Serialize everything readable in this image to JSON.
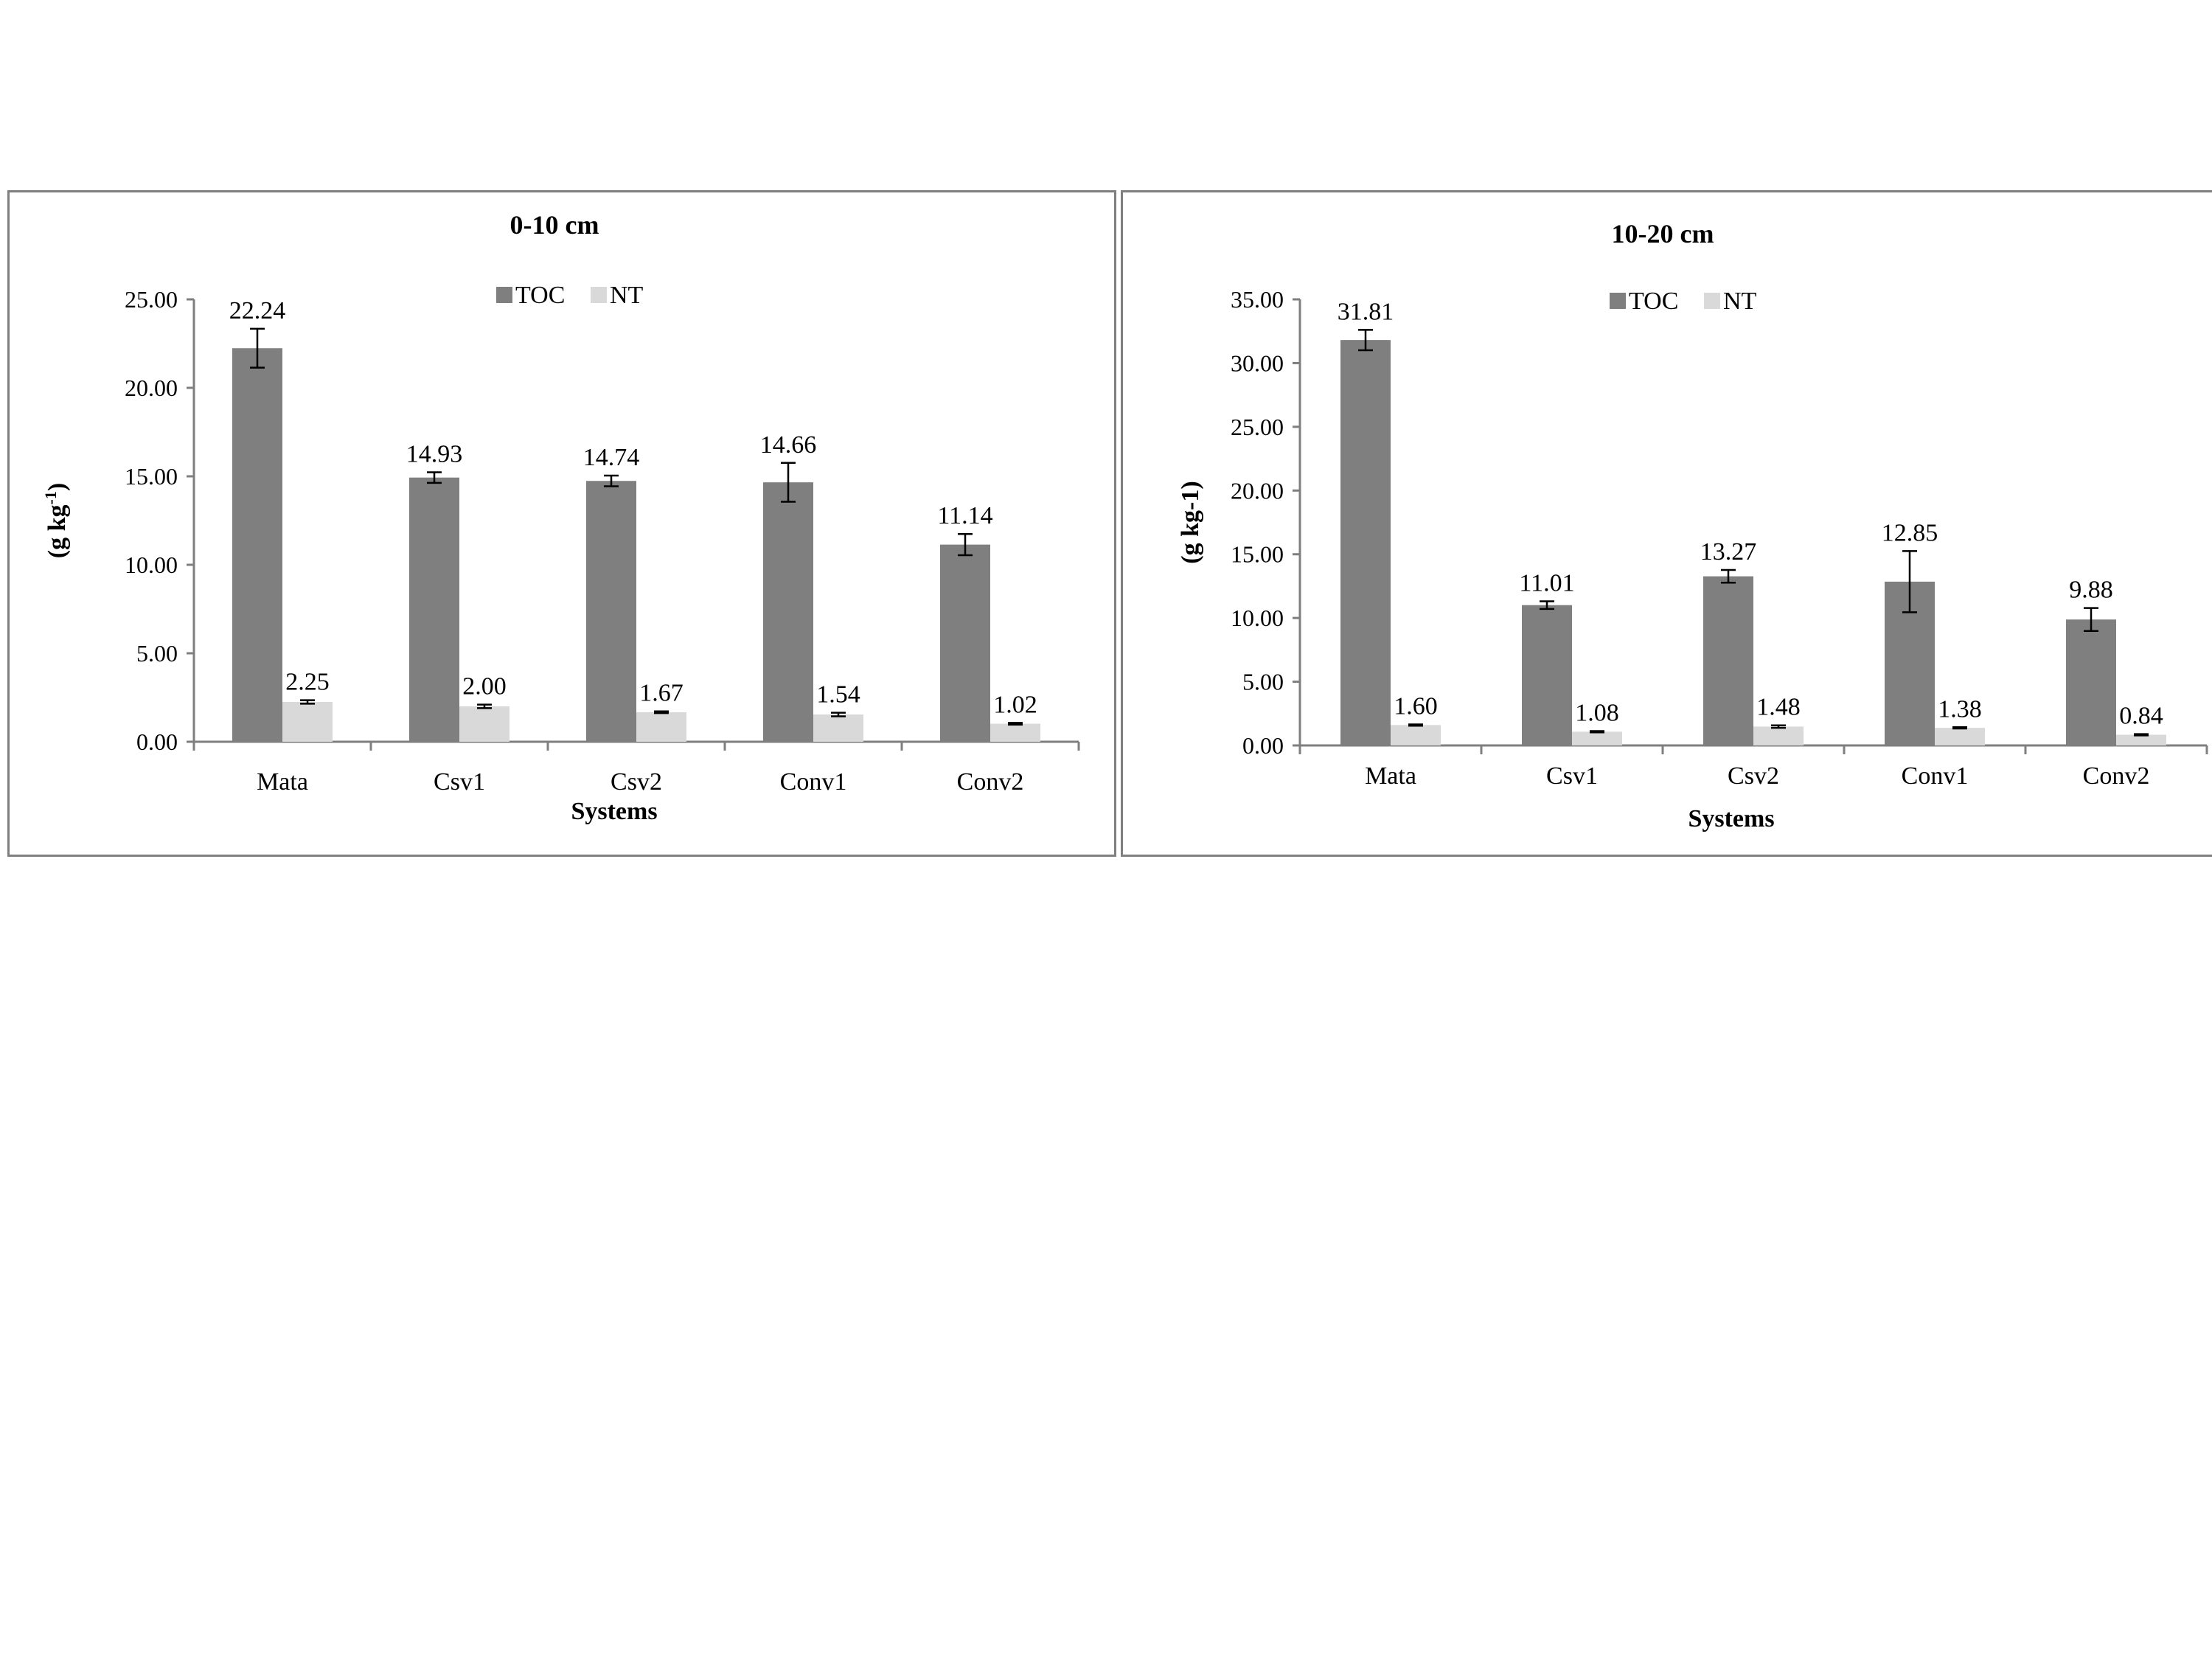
{
  "colors": {
    "TOC": "#7f7f7f",
    "NT": "#d9d9d9",
    "axis": "#7f7f7f",
    "frame": "#7f7f7f"
  },
  "chart_data": [
    {
      "type": "bar",
      "title": "0-10 cm",
      "xlabel": "Systems",
      "ylabel_main": "(g kg",
      "ylabel_sup": "-1",
      "ylabel_close": ")",
      "categories": [
        "Mata",
        "Csv1",
        "Csv2",
        "Conv1",
        "Conv2"
      ],
      "ylim": [
        0,
        25
      ],
      "yticks": [
        "0.00",
        "5.00",
        "10.00",
        "15.00",
        "20.00",
        "25.00"
      ],
      "legend_position": "top-center",
      "series": [
        {
          "name": "TOC",
          "values": [
            22.24,
            14.93,
            14.74,
            14.66,
            11.14
          ],
          "labels": [
            "22.24",
            "14.93",
            "14.74",
            "14.66",
            "11.14"
          ],
          "errors": [
            1.1,
            0.3,
            0.3,
            1.1,
            0.6
          ]
        },
        {
          "name": "NT",
          "values": [
            2.25,
            2.0,
            1.67,
            1.54,
            1.02
          ],
          "labels": [
            "2.25",
            "2.00",
            "1.67",
            "1.54",
            "1.02"
          ],
          "errors": [
            0.1,
            0.1,
            0.05,
            0.1,
            0.05
          ]
        }
      ]
    },
    {
      "type": "bar",
      "title": "10-20 cm",
      "xlabel": "Systems",
      "ylabel_main": "(g kg-1)",
      "ylabel_sup": "",
      "ylabel_close": "",
      "categories": [
        "Mata",
        "Csv1",
        "Csv2",
        "Conv1",
        "Conv2"
      ],
      "ylim": [
        0,
        35
      ],
      "yticks": [
        "0.00",
        "5.00",
        "10.00",
        "15.00",
        "20.00",
        "25.00",
        "30.00",
        "35.00"
      ],
      "legend_position": "top-center",
      "series": [
        {
          "name": "TOC",
          "values": [
            31.81,
            11.01,
            13.27,
            12.85,
            9.88
          ],
          "labels": [
            "31.81",
            "11.01",
            "13.27",
            "12.85",
            "9.88"
          ],
          "errors": [
            0.8,
            0.3,
            0.5,
            2.4,
            0.9
          ]
        },
        {
          "name": "NT",
          "values": [
            1.6,
            1.08,
            1.48,
            1.38,
            0.84
          ],
          "labels": [
            "1.60",
            "1.08",
            "1.48",
            "1.38",
            "0.84"
          ],
          "errors": [
            0.05,
            0.05,
            0.1,
            0.05,
            0.05
          ]
        }
      ]
    }
  ]
}
